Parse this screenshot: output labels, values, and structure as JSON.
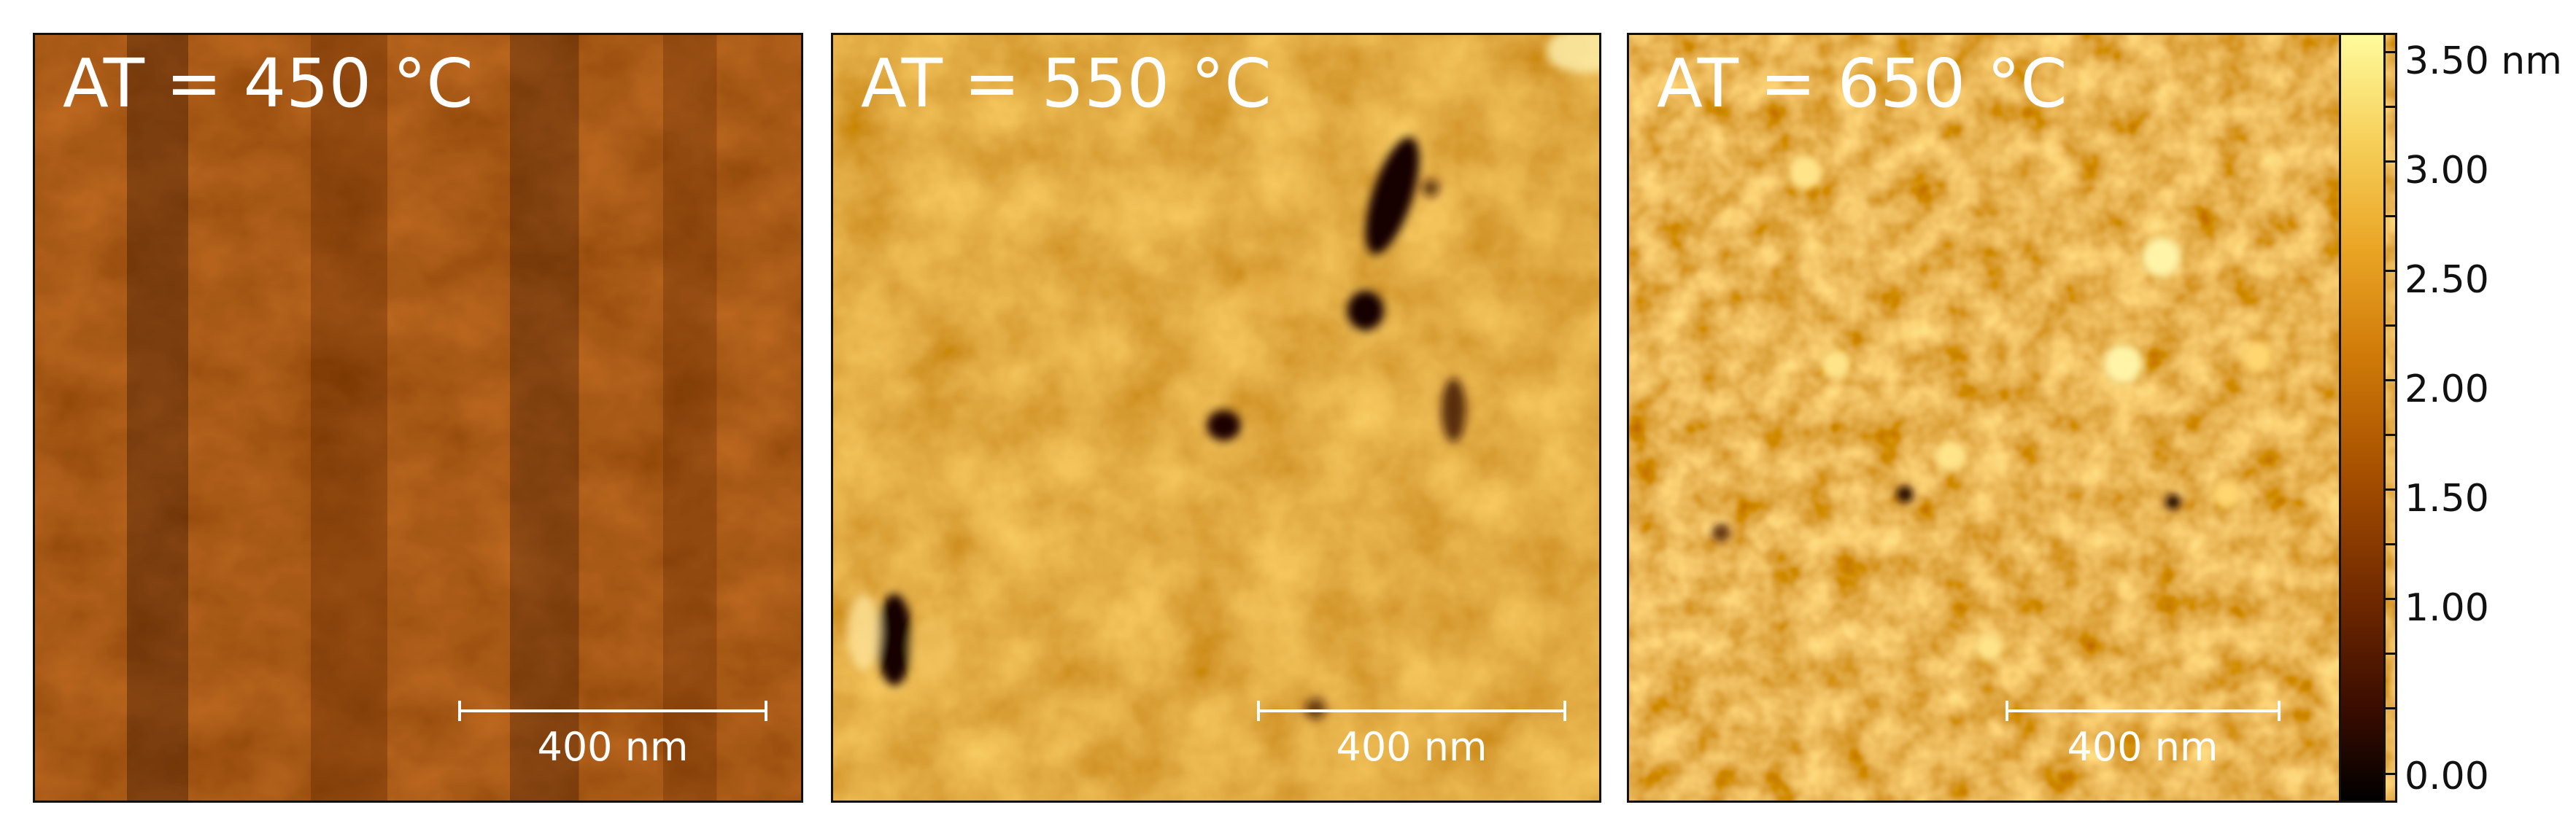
{
  "panels": [
    {
      "label": "AT = 450 °C",
      "scale_label": "400 nm"
    },
    {
      "label": "AT = 550 °C",
      "scale_label": "400 nm"
    },
    {
      "label": "AT = 650 °C",
      "scale_label": "400 nm"
    }
  ],
  "colorbar": {
    "unit": "nm",
    "ticks": [
      "3.50 nm",
      "3.00",
      "2.50",
      "2.00",
      "1.50",
      "1.00",
      "0.00"
    ],
    "colors": {
      "low": "#000000",
      "mid": "#c57000",
      "high": "#fffb9c"
    }
  }
}
